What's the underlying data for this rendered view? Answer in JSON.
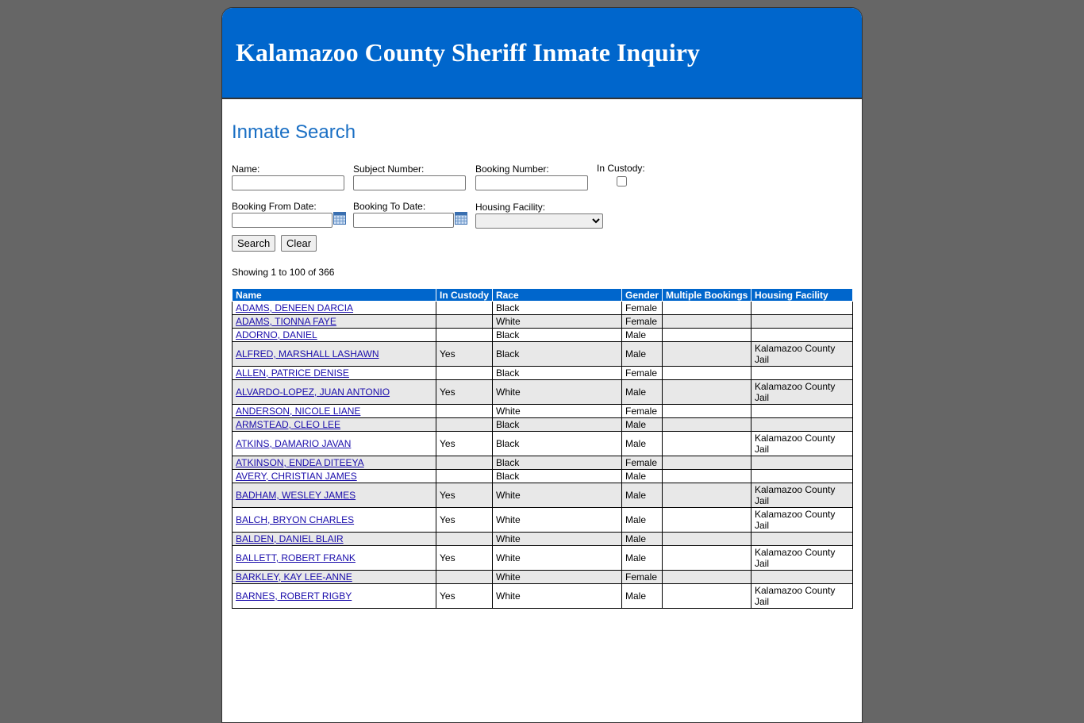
{
  "header": {
    "title": "Kalamazoo County Sheriff Inmate Inquiry"
  },
  "search": {
    "heading": "Inmate Search",
    "fields": {
      "name": "Name:",
      "subject_number": "Subject Number:",
      "booking_number": "Booking Number:",
      "in_custody": "In Custody:",
      "booking_from_date": "Booking From Date:",
      "booking_to_date": "Booking To Date:",
      "housing_facility": "Housing Facility:"
    },
    "buttons": {
      "search": "Search",
      "clear": "Clear"
    },
    "status": "Showing 1 to 100 of 366"
  },
  "table": {
    "columns": [
      "Name",
      "In Custody",
      "Race",
      "Gender",
      "Multiple Bookings",
      "Housing Facility"
    ],
    "rows": [
      [
        "ADAMS, DENEEN DARCIA",
        null,
        "Black",
        "Female",
        null,
        null
      ],
      [
        "ADAMS, TIONNA FAYE",
        null,
        "White",
        "Female",
        null,
        null
      ],
      [
        "ADORNO, DANIEL",
        null,
        "Black",
        "Male",
        null,
        null
      ],
      [
        "ALFRED, MARSHALL LASHAWN",
        "Yes",
        "Black",
        "Male",
        null,
        "Kalamazoo County Jail"
      ],
      [
        "ALLEN, PATRICE DENISE",
        null,
        "Black",
        "Female",
        null,
        null
      ],
      [
        "ALVARDO-LOPEZ, JUAN ANTONIO",
        "Yes",
        "White",
        "Male",
        null,
        "Kalamazoo County Jail"
      ],
      [
        "ANDERSON, NICOLE LIANE",
        null,
        "White",
        "Female",
        null,
        null
      ],
      [
        "ARMSTEAD, CLEO LEE",
        null,
        "Black",
        "Male",
        null,
        null
      ],
      [
        "ATKINS, DAMARIO JAVAN",
        "Yes",
        "Black",
        "Male",
        null,
        "Kalamazoo County Jail"
      ],
      [
        "ATKINSON, ENDEA DITEEYA",
        null,
        "Black",
        "Female",
        null,
        null
      ],
      [
        "AVERY, CHRISTIAN JAMES",
        null,
        "Black",
        "Male",
        null,
        null
      ],
      [
        "BADHAM, WESLEY JAMES",
        "Yes",
        "White",
        "Male",
        null,
        "Kalamazoo County Jail"
      ],
      [
        "BALCH, BRYON CHARLES",
        "Yes",
        "White",
        "Male",
        null,
        "Kalamazoo County Jail"
      ],
      [
        "BALDEN, DANIEL BLAIR",
        null,
        "White",
        "Male",
        null,
        null
      ],
      [
        "BALLETT, ROBERT FRANK",
        "Yes",
        "White",
        "Male",
        null,
        "Kalamazoo County Jail"
      ],
      [
        "BARKLEY, KAY LEE-ANNE",
        null,
        "White",
        "Female",
        null,
        null
      ],
      [
        "BARNES, ROBERT RIGBY",
        "Yes",
        "White",
        "Male",
        null,
        "Kalamazoo County Jail"
      ]
    ]
  }
}
